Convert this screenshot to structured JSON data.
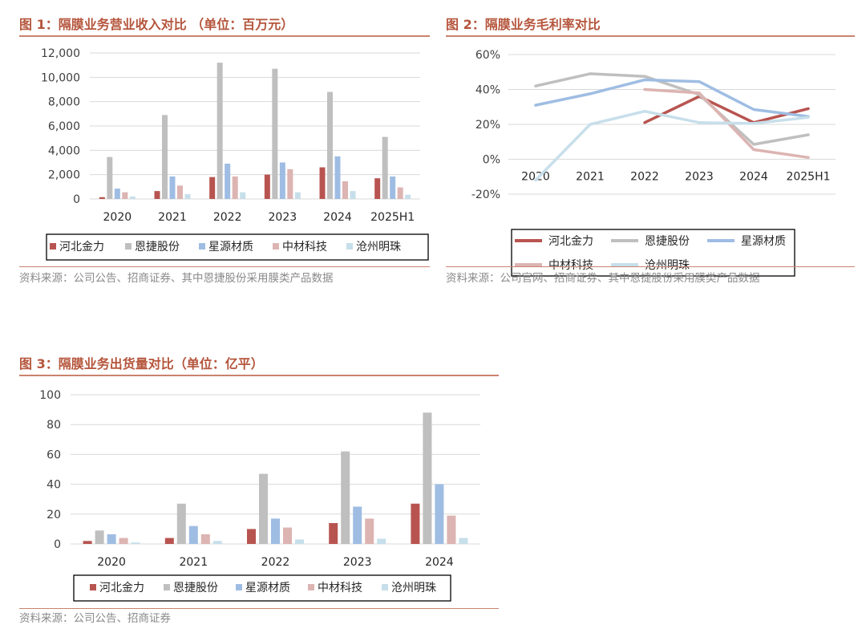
{
  "palette": {
    "title_color": "#b5553c",
    "rule_color": "#c9836e",
    "series_colors": [
      "#b85450",
      "#bfbfbf",
      "#9fbde3",
      "#dcb4b2",
      "#c7dfea"
    ]
  },
  "figures": [
    {
      "title": "图 1：隔膜业务营业收入对比 （单位：百万元）",
      "source": "资料来源：公司公告、招商证券、其中恩捷股份采用膜类产品数据"
    },
    {
      "title": "图 2：隔膜业务毛利率对比",
      "source": "资料来源：公司官网、招商证券、其中恩捷股份采用膜类产品数据"
    },
    {
      "title": "图 3：隔膜业务出货量对比（单位：亿平）",
      "source": "资料来源：公司公告、招商证券"
    }
  ],
  "chart_data": [
    {
      "type": "bar",
      "title": "图 1：隔膜业务营业收入对比 （单位：百万元）",
      "categories": [
        "2020",
        "2021",
        "2022",
        "2023",
        "2024",
        "2025H1"
      ],
      "ylim": [
        0,
        12000
      ],
      "yticks": [
        "0",
        "2,000",
        "4,000",
        "6,000",
        "8,000",
        "10,000",
        "12,000"
      ],
      "grid": true,
      "legend": "bottom",
      "series": [
        {
          "name": "河北金力",
          "values": [
            150,
            650,
            1800,
            2000,
            2600,
            1700
          ]
        },
        {
          "name": "恩捷股份",
          "values": [
            3450,
            6900,
            11200,
            10700,
            8800,
            5100
          ]
        },
        {
          "name": "星源材质",
          "values": [
            850,
            1850,
            2900,
            3000,
            3500,
            1850
          ]
        },
        {
          "name": "中材科技",
          "values": [
            550,
            1100,
            1850,
            2450,
            1450,
            950
          ]
        },
        {
          "name": "沧州明珠",
          "values": [
            200,
            400,
            550,
            550,
            650,
            350
          ]
        }
      ]
    },
    {
      "type": "line",
      "title": "图 2：隔膜业务毛利率对比",
      "categories": [
        "2020",
        "2021",
        "2022",
        "2023",
        "2024",
        "2025H1"
      ],
      "ylim": [
        -20,
        60
      ],
      "yticks": [
        "-20%",
        "0%",
        "20%",
        "40%",
        "60%"
      ],
      "grid": true,
      "legend": "bottom",
      "series": [
        {
          "name": "河北金力",
          "values": [
            null,
            null,
            21,
            36,
            21,
            29
          ]
        },
        {
          "name": "恩捷股份",
          "values": [
            42,
            49,
            47.5,
            37,
            8.5,
            14
          ]
        },
        {
          "name": "星源材质",
          "values": [
            31,
            37.5,
            45.5,
            44.5,
            28.5,
            24.5
          ]
        },
        {
          "name": "中材科技",
          "values": [
            null,
            null,
            40,
            38,
            5.5,
            1
          ]
        },
        {
          "name": "沧州明珠",
          "values": [
            -12,
            20,
            27.5,
            21,
            20.5,
            24
          ]
        }
      ]
    },
    {
      "type": "bar",
      "title": "图 3：隔膜业务出货量对比（单位：亿平）",
      "categories": [
        "2020",
        "2021",
        "2022",
        "2023",
        "2024"
      ],
      "ylim": [
        0,
        100
      ],
      "yticks": [
        "0",
        "20",
        "40",
        "60",
        "80",
        "100"
      ],
      "grid": true,
      "legend": "bottom",
      "series": [
        {
          "name": "河北金力",
          "values": [
            2,
            4,
            10,
            14,
            27
          ]
        },
        {
          "name": "恩捷股份",
          "values": [
            9,
            27,
            47,
            62,
            88
          ]
        },
        {
          "name": "星源材质",
          "values": [
            6.5,
            12,
            17,
            25,
            40
          ]
        },
        {
          "name": "中材科技",
          "values": [
            4,
            6.5,
            11,
            17,
            19
          ]
        },
        {
          "name": "沧州明珠",
          "values": [
            1,
            2,
            3,
            3.5,
            4
          ]
        }
      ]
    }
  ]
}
